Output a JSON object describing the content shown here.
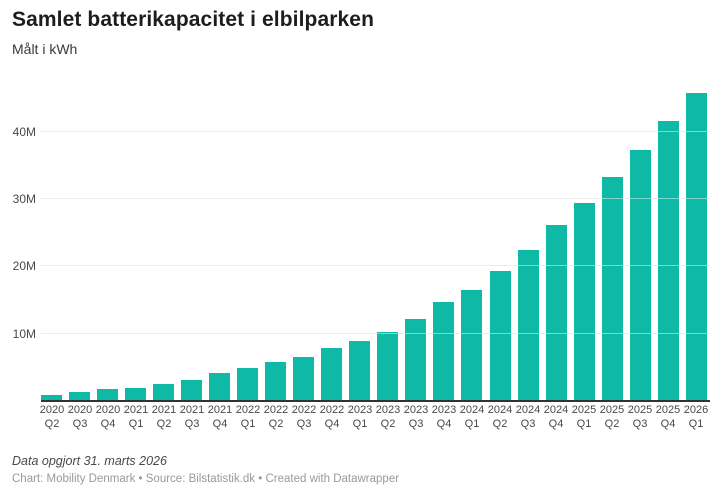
{
  "header": {
    "title": "Samlet batterikapacitet i elbilparken",
    "subtitle": "Målt i kWh"
  },
  "chart_data": {
    "type": "bar",
    "title": "Samlet batterikapacitet i elbilparken",
    "subtitle": "Målt i kWh",
    "unit": "kWh (millions)",
    "categories": [
      {
        "year": "2020",
        "q": "Q2"
      },
      {
        "year": "2020",
        "q": "Q3"
      },
      {
        "year": "2020",
        "q": "Q4"
      },
      {
        "year": "2021",
        "q": "Q1"
      },
      {
        "year": "2021",
        "q": "Q2"
      },
      {
        "year": "2021",
        "q": "Q3"
      },
      {
        "year": "2021",
        "q": "Q4"
      },
      {
        "year": "2022",
        "q": "Q1"
      },
      {
        "year": "2022",
        "q": "Q2"
      },
      {
        "year": "2022",
        "q": "Q3"
      },
      {
        "year": "2022",
        "q": "Q4"
      },
      {
        "year": "2023",
        "q": "Q1"
      },
      {
        "year": "2023",
        "q": "Q2"
      },
      {
        "year": "2023",
        "q": "Q3"
      },
      {
        "year": "2023",
        "q": "Q4"
      },
      {
        "year": "2024",
        "q": "Q1"
      },
      {
        "year": "2024",
        "q": "Q2"
      },
      {
        "year": "2024",
        "q": "Q3"
      },
      {
        "year": "2024",
        "q": "Q4"
      },
      {
        "year": "2025",
        "q": "Q1"
      },
      {
        "year": "2025",
        "q": "Q2"
      },
      {
        "year": "2025",
        "q": "Q3"
      },
      {
        "year": "2025",
        "q": "Q4"
      },
      {
        "year": "2026",
        "q": "Q1"
      }
    ],
    "values_millions": [
      0.9,
      1.4,
      1.8,
      2.0,
      2.5,
      3.1,
      4.2,
      4.9,
      5.8,
      6.6,
      7.9,
      9.0,
      10.3,
      12.2,
      14.7,
      16.5,
      19.4,
      22.4,
      26.2,
      29.4,
      33.3,
      37.3,
      41.6,
      45.8
    ],
    "y_ticks": [
      {
        "value": 10,
        "label": "10M"
      },
      {
        "value": 20,
        "label": "20M"
      },
      {
        "value": 30,
        "label": "30M"
      },
      {
        "value": 40,
        "label": "40M"
      }
    ],
    "ylim": [
      0,
      46.8
    ],
    "grid": true,
    "legend": "none",
    "colors": {
      "bar": "#0eb9a6",
      "gridline": "#dcdcdc",
      "axis_line": "#333333",
      "tick_text": "#494949"
    }
  },
  "footer": {
    "note": "Data opgjort 31. marts 2026",
    "credit": "Chart: Mobility Denmark • Source: Bilstatistik.dk • Created with Datawrapper"
  }
}
